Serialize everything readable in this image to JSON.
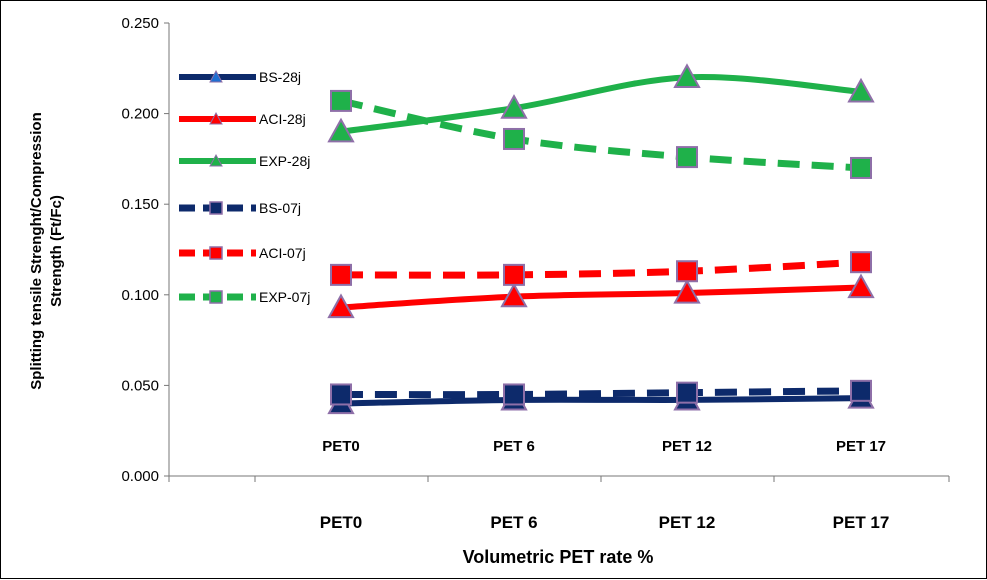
{
  "chart_data": {
    "type": "line",
    "categories": [
      "PET0",
      "PET 6",
      "PET 12",
      "PET 17"
    ],
    "xlabel": "Volumetric PET rate %",
    "ylabel_line1": "Splitting tensile Strenght/Compression",
    "ylabel_line2": "Strength  (Ft/Fc)",
    "ylim": [
      0,
      0.25
    ],
    "yticks": [
      "0.000",
      "0.050",
      "0.100",
      "0.150",
      "0.200",
      "0.250"
    ],
    "grid": false,
    "legend_position": "left",
    "series": [
      {
        "name": "BS-28j",
        "values": [
          0.04,
          0.042,
          0.042,
          0.043
        ],
        "color": "#0d2a6b",
        "dashed": false,
        "marker": "triangle"
      },
      {
        "name": "ACI-28j",
        "values": [
          0.093,
          0.099,
          0.101,
          0.104
        ],
        "color": "#ff0000",
        "dashed": false,
        "marker": "triangle"
      },
      {
        "name": "EXP-28j",
        "values": [
          0.19,
          0.203,
          0.22,
          0.212
        ],
        "color": "#1fb14a",
        "dashed": false,
        "marker": "triangle"
      },
      {
        "name": "BS-07j",
        "values": [
          0.045,
          0.045,
          0.046,
          0.047
        ],
        "color": "#0d2a6b",
        "dashed": true,
        "marker": "square"
      },
      {
        "name": "ACI-07j",
        "values": [
          0.111,
          0.111,
          0.113,
          0.118
        ],
        "color": "#ff0000",
        "dashed": true,
        "marker": "square"
      },
      {
        "name": "EXP-07j",
        "values": [
          0.207,
          0.186,
          0.176,
          0.17
        ],
        "color": "#1fb14a",
        "dashed": true,
        "marker": "square"
      }
    ],
    "marker_outline": "#8e6fa8"
  }
}
